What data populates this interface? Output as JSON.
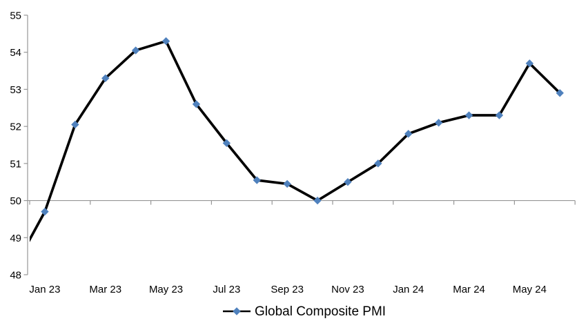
{
  "chart_data": {
    "type": "line",
    "title": "",
    "series": [
      {
        "name": "Global Composite PMI",
        "line_color": "#000000",
        "marker": "diamond",
        "marker_color": "#4F81BD",
        "x": [
          "Dec 22",
          "Jan 23",
          "Feb 23",
          "Mar 23",
          "Apr 23",
          "May 23",
          "Jun 23",
          "Jul 23",
          "Aug 23",
          "Sep 23",
          "Oct 23",
          "Nov 23",
          "Dec 23",
          "Jan 24",
          "Feb 24",
          "Mar 24",
          "Apr 24",
          "May 24",
          "Jun 24"
        ],
        "values": [
          48.2,
          49.7,
          52.05,
          53.3,
          54.05,
          54.3,
          52.6,
          51.55,
          50.55,
          50.45,
          50.0,
          50.5,
          51.0,
          51.8,
          52.1,
          52.3,
          52.3,
          53.7,
          52.9
        ]
      }
    ],
    "xtick_labels": [
      "Jan 23",
      "Mar 23",
      "May 23",
      "Jul 23",
      "Sep 23",
      "Nov 23",
      "Jan 24",
      "Mar 24",
      "May 24"
    ],
    "xtick_interval_months": 2,
    "ylim": [
      48,
      55
    ],
    "ytick_step": 1,
    "x_axis_crosses_at_y": 50,
    "first_category_clipped_at_left_axis": true,
    "grid": "off",
    "legend_position": "bottom",
    "axis_color": "#969696",
    "text_color": "#000000",
    "background_color": "#FFFFFF"
  }
}
